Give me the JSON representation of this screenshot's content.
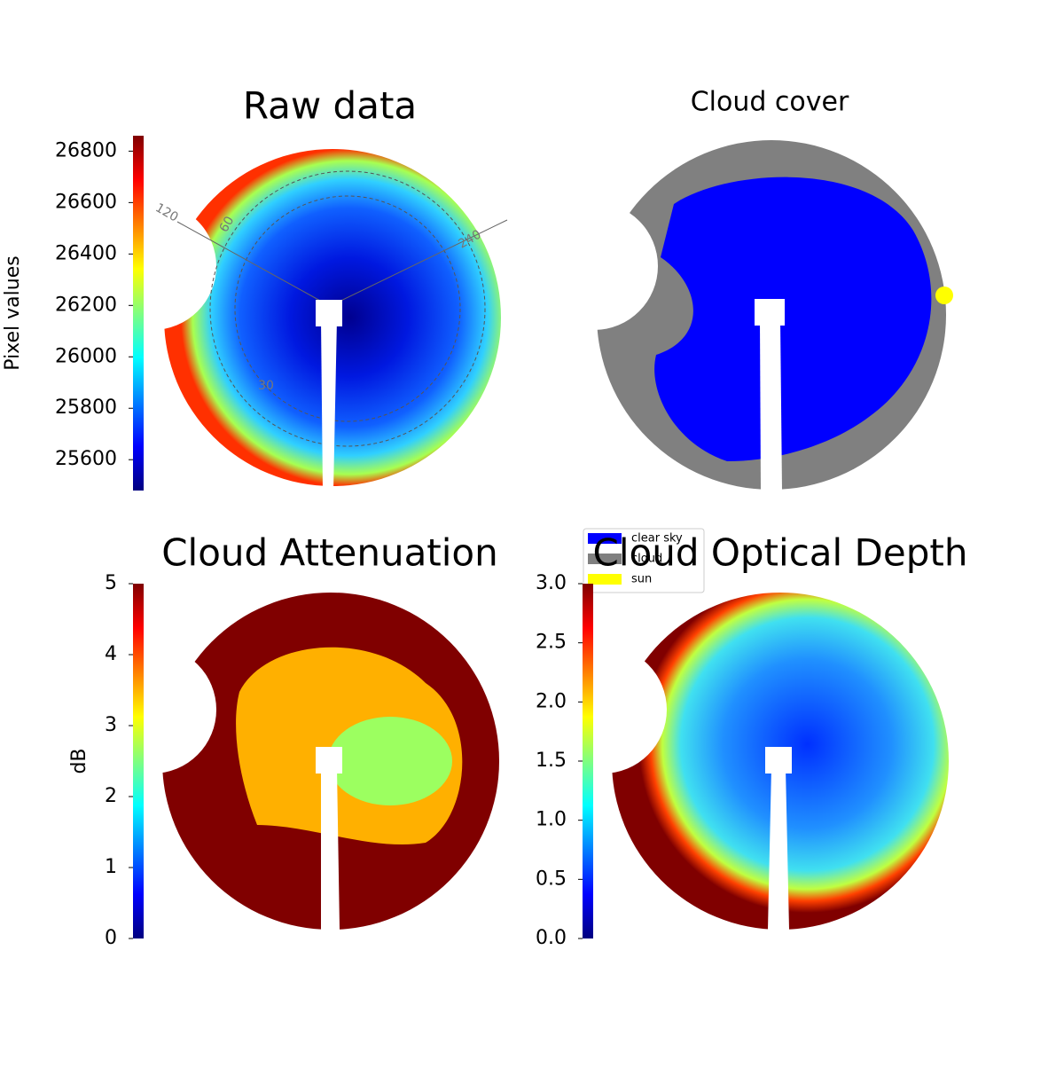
{
  "chart_data": [
    {
      "type": "image",
      "title": "Raw data",
      "colorbar": {
        "label": "Pixel values",
        "lim": [
          25480,
          26860
        ],
        "ticks": [
          25600,
          25800,
          26000,
          26200,
          26400,
          26600,
          26800
        ]
      },
      "annotations": [
        "120",
        "60",
        "240",
        "30"
      ]
    },
    {
      "type": "image",
      "title": "Cloud cover",
      "legend": [
        {
          "name": "clear sky",
          "color": "#0000ff"
        },
        {
          "name": "cloud",
          "color": "#808080"
        },
        {
          "name": "sun",
          "color": "#ffff00"
        }
      ]
    },
    {
      "type": "image",
      "title": "Cloud Attenuation",
      "colorbar": {
        "label": "dB",
        "lim": [
          0,
          5
        ],
        "ticks": [
          0,
          1,
          2,
          3,
          4,
          5
        ]
      }
    },
    {
      "type": "image",
      "title": "Cloud Optical Depth",
      "colorbar": {
        "lim": [
          0,
          3
        ],
        "ticks": [
          {
            "value": 0,
            "label": "0.0"
          },
          0.5,
          {
            "value": 1,
            "label": "1.0"
          },
          1.5,
          {
            "value": 2,
            "label": "2.0"
          },
          2.5,
          {
            "value": 3,
            "label": "3.0"
          }
        ]
      }
    }
  ]
}
